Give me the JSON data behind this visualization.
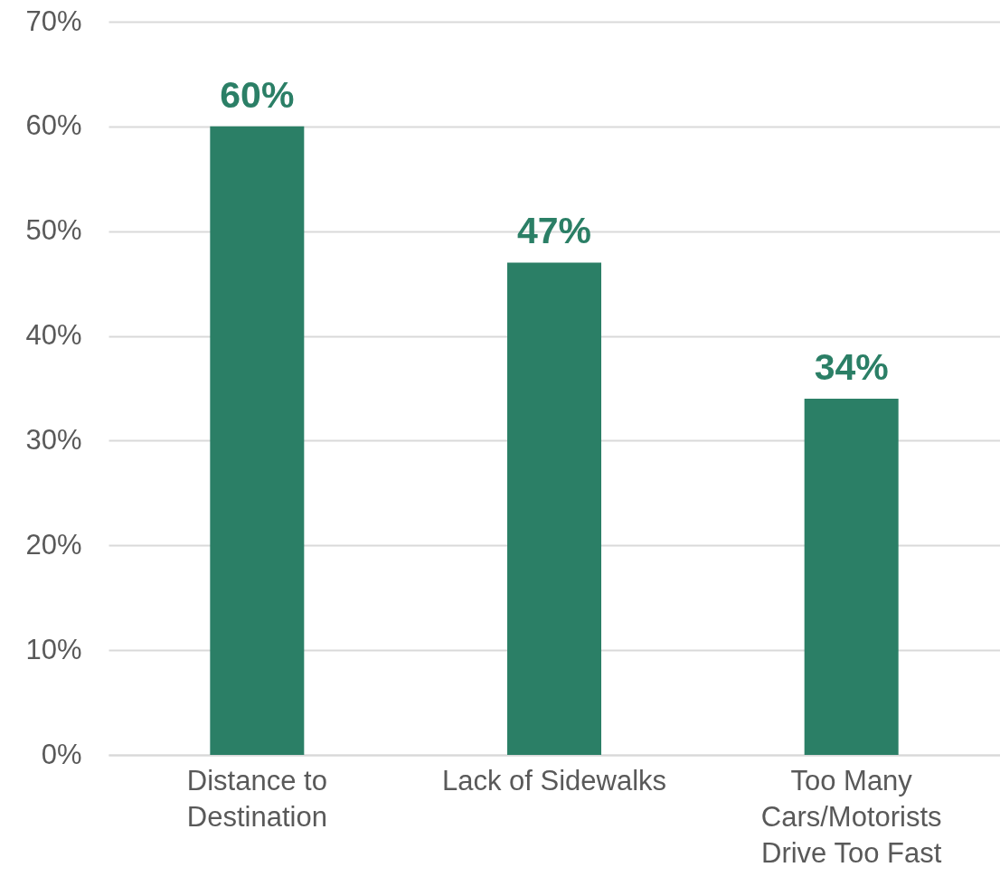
{
  "chart_data": {
    "type": "bar",
    "categories": [
      "Distance to Destination",
      "Lack of Sidewalks",
      "Too Many Cars/Motorists Drive Too Fast"
    ],
    "values": [
      60,
      47,
      34
    ],
    "value_labels": [
      "60%",
      "47%",
      "34%"
    ],
    "color": "#2b7f66",
    "ylim": [
      0,
      70
    ],
    "yticks": [
      {
        "value": 0,
        "label": "0%"
      },
      {
        "value": 10,
        "label": "10%"
      },
      {
        "value": 20,
        "label": "20%"
      },
      {
        "value": 30,
        "label": "30%"
      },
      {
        "value": 40,
        "label": "40%"
      },
      {
        "value": 50,
        "label": "50%"
      },
      {
        "value": 60,
        "label": "60%"
      },
      {
        "value": 70,
        "label": "70%"
      }
    ],
    "grid": "y"
  }
}
